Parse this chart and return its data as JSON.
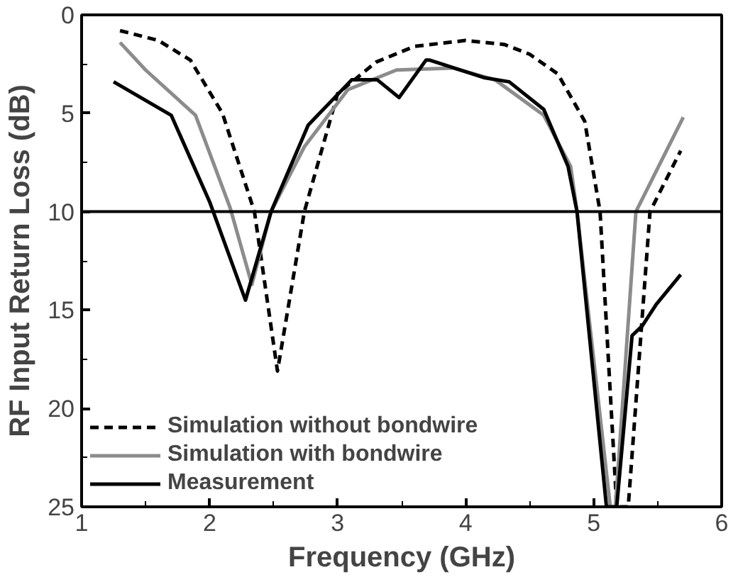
{
  "chart_data": {
    "type": "line",
    "xlabel": "Frequency (GHz)",
    "ylabel": "RF Input Return Loss (dB)",
    "xlim": [
      1,
      6
    ],
    "ylim": [
      25,
      0
    ],
    "xticks": [
      1,
      2,
      3,
      4,
      5,
      6
    ],
    "yticks": [
      0,
      5,
      10,
      15,
      20,
      25
    ],
    "grid": false,
    "legend": "bottom left",
    "ref_lines": [
      {
        "axis": "y",
        "value": 10,
        "color": "#000000"
      }
    ],
    "series": [
      {
        "name": "Simulation without bondwire",
        "color": "#000000",
        "line_style": "dashed",
        "x": [
          1.3,
          1.6,
          1.85,
          2.1,
          2.35,
          2.53,
          2.74,
          3.0,
          3.3,
          3.6,
          4.0,
          4.3,
          4.5,
          4.72,
          4.93,
          5.05,
          5.18,
          5.22,
          5.27,
          5.44,
          5.68
        ],
        "values": [
          0.8,
          1.3,
          2.3,
          5.0,
          10.0,
          18.1,
          10.0,
          4.0,
          2.4,
          1.6,
          1.3,
          1.5,
          2.0,
          3.0,
          5.4,
          10.0,
          25,
          25,
          25,
          10.0,
          6.9
        ]
      },
      {
        "name": "Simulation with bondwire",
        "color": "#8c8c8c",
        "line_style": "solid",
        "x": [
          1.3,
          1.5,
          1.89,
          2.16,
          2.33,
          2.48,
          2.74,
          3.08,
          3.46,
          3.9,
          4.23,
          4.61,
          4.82,
          4.87,
          5.13,
          5.17,
          5.33,
          5.7
        ],
        "values": [
          1.4,
          2.8,
          5.1,
          9.8,
          13.7,
          10.0,
          6.7,
          3.8,
          2.8,
          2.7,
          3.3,
          5.1,
          7.7,
          10.0,
          25,
          25,
          10.0,
          5.2
        ]
      },
      {
        "name": "Measurement",
        "color": "#000000",
        "line_style": "solid",
        "x": [
          1.25,
          1.7,
          2.0,
          2.28,
          2.48,
          2.77,
          3.11,
          3.31,
          3.48,
          3.69,
          3.72,
          4.15,
          4.34,
          4.61,
          4.8,
          4.87,
          5.1,
          5.18,
          5.3,
          5.38,
          5.49,
          5.68
        ],
        "values": [
          3.4,
          5.1,
          9.5,
          14.5,
          10.0,
          5.6,
          3.3,
          3.3,
          4.2,
          2.3,
          2.3,
          3.2,
          3.4,
          4.8,
          7.7,
          10.0,
          25,
          25,
          16.3,
          15.8,
          14.7,
          13.2
        ]
      }
    ]
  }
}
